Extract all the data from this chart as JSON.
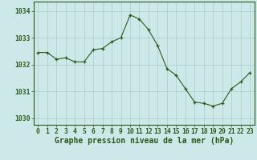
{
  "x": [
    0,
    1,
    2,
    3,
    4,
    5,
    6,
    7,
    8,
    9,
    10,
    11,
    12,
    13,
    14,
    15,
    16,
    17,
    18,
    19,
    20,
    21,
    22,
    23
  ],
  "y": [
    1032.45,
    1032.45,
    1032.2,
    1032.25,
    1032.1,
    1032.1,
    1032.55,
    1032.6,
    1032.85,
    1033.0,
    1033.85,
    1033.7,
    1033.3,
    1032.7,
    1031.85,
    1031.6,
    1031.1,
    1030.6,
    1030.55,
    1030.45,
    1030.55,
    1031.1,
    1031.35,
    1031.7
  ],
  "bg_color": "#cce8e8",
  "line_color": "#2d5a1b",
  "marker_color": "#2d5a1b",
  "grid_color": "#aacccc",
  "spine_color": "#2d5a1b",
  "tick_color": "#2d5a1b",
  "ylabel_vals": [
    1030,
    1031,
    1032,
    1033,
    1034
  ],
  "ylim": [
    1029.75,
    1034.35
  ],
  "xlim": [
    -0.5,
    23.5
  ],
  "xlabel": "Graphe pression niveau de la mer (hPa)",
  "xlabel_color": "#2d5a1b",
  "tick_fontsize": 5.8,
  "label_fontsize": 7.0
}
